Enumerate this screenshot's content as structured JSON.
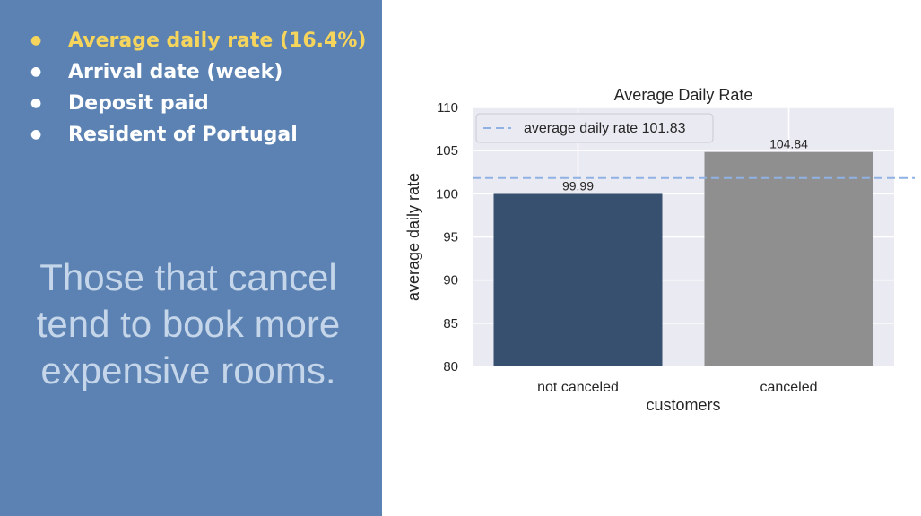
{
  "slide": {
    "bullets": [
      {
        "text": "Average daily rate (16.4%)",
        "highlighted": true
      },
      {
        "text": "Arrival date (week)",
        "highlighted": false
      },
      {
        "text": "Deposit paid",
        "highlighted": false
      },
      {
        "text": "Resident of Portugal",
        "highlighted": false
      }
    ],
    "message": "Those that cancel tend to book more expensive rooms.",
    "colors": {
      "panel": "#5b82b2",
      "highlight": "#f6d55c",
      "bullet_text": "#ffffff",
      "message": "#c5d6ea"
    }
  },
  "chart_data": {
    "type": "bar",
    "title": "Average Daily Rate",
    "xlabel": "customers",
    "ylabel": "average daily rate",
    "categories": [
      "not canceled",
      "canceled"
    ],
    "values": [
      99.99,
      104.84
    ],
    "data_labels": [
      "99.99",
      "104.84"
    ],
    "colors": [
      "#37506f",
      "#8f8f8f"
    ],
    "ylim": [
      80,
      110
    ],
    "yticks": [
      80,
      85,
      90,
      95,
      100,
      105,
      110
    ],
    "reference_line": {
      "value": 101.83,
      "label": "average daily rate 101.83",
      "style": "dashed",
      "color": "#8fb1e3"
    },
    "legend_position": "top-left",
    "grid": true,
    "background": "#eaeaf2"
  }
}
